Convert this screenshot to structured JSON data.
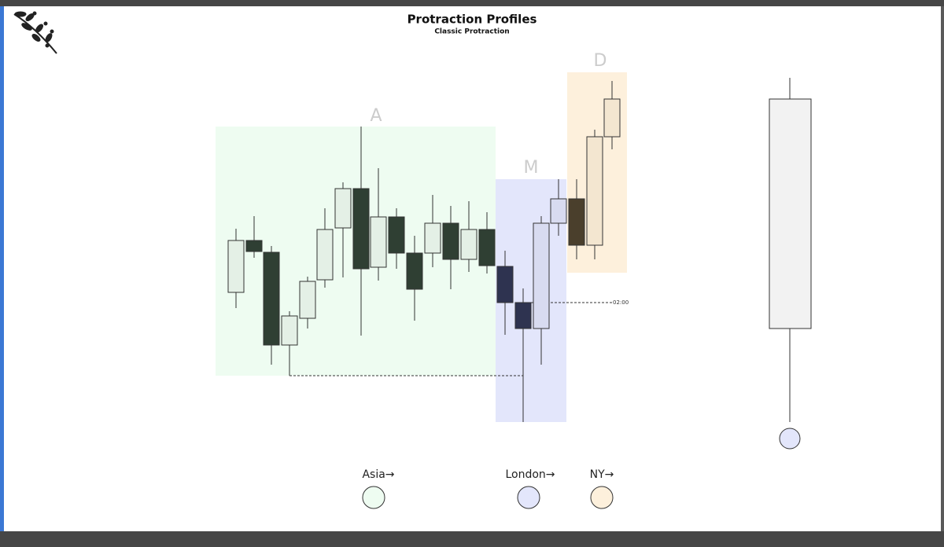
{
  "header": {
    "title": "Protraction Profiles",
    "subtitle": "Classic Protraction"
  },
  "zones": [
    {
      "label": "A"
    },
    {
      "label": "M"
    },
    {
      "label": "D"
    }
  ],
  "time_marker": "02:00",
  "legend": [
    {
      "label": "Asia→"
    },
    {
      "label": "London→"
    },
    {
      "label": "NY→"
    }
  ]
}
